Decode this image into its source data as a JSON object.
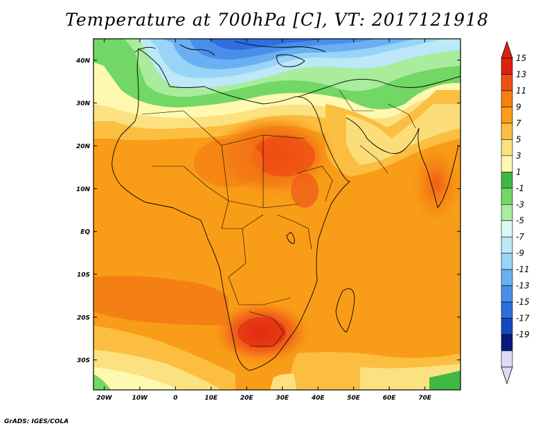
{
  "title": "Temperature at 700hPa [C], VT: 2017121918",
  "credit": "GrADS: IGES/COLA",
  "lat_labels": [
    "40N",
    "30N",
    "20N",
    "10N",
    "EQ",
    "10S",
    "20S",
    "30S"
  ],
  "lat_values": [
    40,
    30,
    20,
    10,
    0,
    -10,
    -20,
    -30
  ],
  "lon_labels": [
    "20W",
    "10W",
    "0",
    "10E",
    "20E",
    "30E",
    "40E",
    "50E",
    "60E",
    "70E"
  ],
  "lon_values": [
    -20,
    -10,
    0,
    10,
    20,
    30,
    40,
    50,
    60,
    70
  ],
  "extent": {
    "lon_min": -23,
    "lon_max": 80,
    "lat_min": -37,
    "lat_max": 45
  },
  "colorbar": {
    "labels": [
      "15",
      "13",
      "11",
      "9",
      "7",
      "5",
      "3",
      "1",
      "-1",
      "-3",
      "-5",
      "-7",
      "-9",
      "-11",
      "-13",
      "-15",
      "-17",
      "-19"
    ],
    "colors": [
      "#e02010",
      "#f05014",
      "#f57f0f",
      "#f99c17",
      "#fbbe40",
      "#fbe17f",
      "#fef8b0",
      "#3fb844",
      "#72d764",
      "#a8ec9c",
      "#dcf8f4",
      "#bce8f8",
      "#98d4f8",
      "#6aaff2",
      "#4a8eea",
      "#2e6edd",
      "#1448bd",
      "#0a1980",
      "#dcdcf6"
    ],
    "over_color": "#e02010",
    "under_color": "#dcdcf6"
  }
}
